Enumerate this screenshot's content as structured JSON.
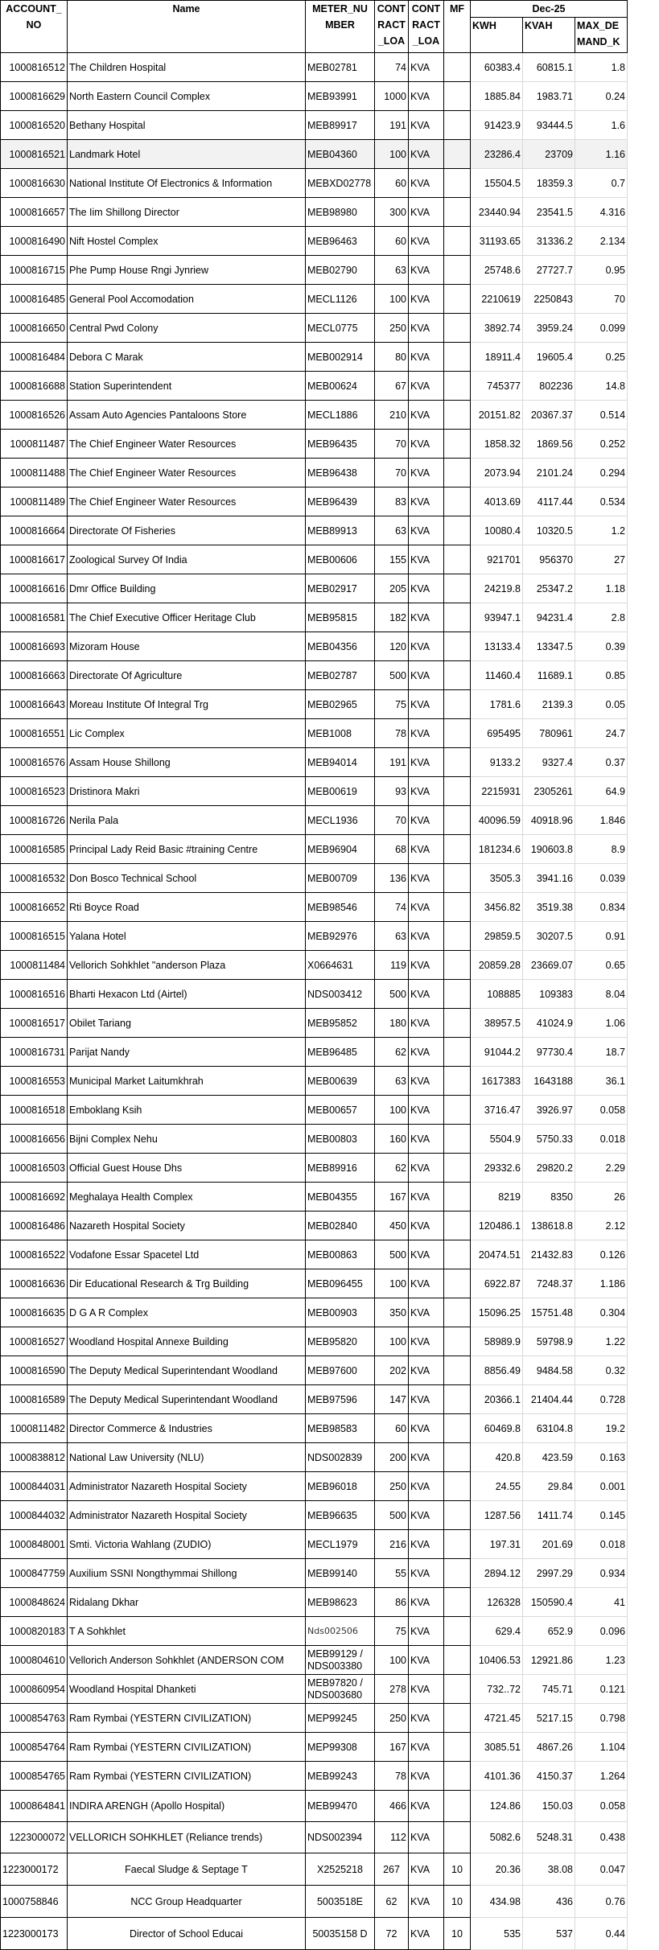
{
  "header": {
    "account_no": "ACCOUNT_ NO",
    "name": "Name",
    "meter_number": "METER_NU MBER",
    "contract_load": "CONT RACT _LOA",
    "contract_load_unit": "CONT RACT _LOA",
    "mf": "MF",
    "period": "Dec-25",
    "kwh": "KWH",
    "kvah": "KVAH",
    "max_demand": "MAX_DE MAND_K"
  },
  "rows": [
    [
      "1000816512",
      "The Children  Hospital",
      "MEB02781",
      "74",
      "KVA",
      "",
      "60383.4",
      "60815.1",
      "1.8"
    ],
    [
      "1000816629",
      "North Eastern Council Complex",
      "MEB93991",
      "1000",
      "KVA",
      "",
      "1885.84",
      "1983.71",
      "0.24"
    ],
    [
      "1000816520",
      "Bethany  Hospital",
      "MEB89917",
      "191",
      "KVA",
      "",
      "91423.9",
      "93444.5",
      "1.6"
    ],
    [
      "1000816521",
      "Landmark  Hotel",
      "MEB04360",
      "100",
      "KVA",
      "",
      "23286.4",
      "23709",
      "1.16"
    ],
    [
      "1000816630",
      "National Institute Of Electronics & Information",
      "MEBXD02778",
      "60",
      "KVA",
      "",
      "15504.5",
      "18359.3",
      "0.7"
    ],
    [
      "1000816657",
      "The Iim Shillong Director",
      "MEB98980",
      "300",
      "KVA",
      "",
      "23440.94",
      "23541.5",
      "4.316"
    ],
    [
      "1000816490",
      "Nift Hostel Complex",
      "MEB96463",
      "60",
      "KVA",
      "",
      "31193.65",
      "31336.2",
      "2.134"
    ],
    [
      "1000816715",
      "Phe Pump House Rngi Jynriew",
      "MEB02790",
      "63",
      "KVA",
      "",
      "25748.6",
      "27727.7",
      "0.95"
    ],
    [
      "1000816485",
      "General Pool Accomodation",
      "MECL1126",
      "100",
      "KVA",
      "",
      "2210619",
      "2250843",
      "70"
    ],
    [
      "1000816650",
      "Central Pwd Colony",
      "MECL0775",
      "250",
      "KVA",
      "",
      "3892.74",
      "3959.24",
      "0.099"
    ],
    [
      "1000816484",
      "Debora C Marak",
      "MEB002914",
      "80",
      "KVA",
      "",
      "18911.4",
      "19605.4",
      "0.25"
    ],
    [
      "1000816688",
      "Station  Superintendent",
      "MEB00624",
      "67",
      "KVA",
      "",
      "745377",
      "802236",
      "14.8"
    ],
    [
      "1000816526",
      "Assam Auto Agencies Pantaloons Store",
      "MECL1886",
      "210",
      "KVA",
      "",
      "20151.82",
      "20367.37",
      "0.514"
    ],
    [
      "1000811487",
      "The Chief Engineer  Water Resources",
      "MEB96435",
      "70",
      "KVA",
      "",
      "1858.32",
      "1869.56",
      "0.252"
    ],
    [
      "1000811488",
      "The Chief Engineer  Water Resources",
      "MEB96438",
      "70",
      "KVA",
      "",
      "2073.94",
      "2101.24",
      "0.294"
    ],
    [
      "1000811489",
      "The Chief Engineer  Water Resources",
      "MEB96439",
      "83",
      "KVA",
      "",
      "4013.69",
      "4117.44",
      "0.534"
    ],
    [
      "1000816664",
      "Directorate Of Fisheries",
      "MEB89913",
      "63",
      "KVA",
      "",
      "10080.4",
      "10320.5",
      "1.2"
    ],
    [
      "1000816617",
      "Zoological Survey Of India",
      "MEB00606",
      "155",
      "KVA",
      "",
      "921701",
      "956370",
      "27"
    ],
    [
      "1000816616",
      "Dmr Office Building",
      "MEB02917",
      "205",
      "KVA",
      "",
      "24219.8",
      "25347.2",
      "1.18"
    ],
    [
      "1000816581",
      "The Chief Executive Officer  Heritage Club",
      "MEB95815",
      "182",
      "KVA",
      "",
      "93947.1",
      "94231.4",
      "2.8"
    ],
    [
      "1000816693",
      "Mizoram  House",
      "MEB04356",
      "120",
      "KVA",
      "",
      "13133.4",
      "13347.5",
      "0.39"
    ],
    [
      "1000816663",
      "Directorate Of Agriculture",
      "MEB02787",
      "500",
      "KVA",
      "",
      "11460.4",
      "11689.1",
      "0.85"
    ],
    [
      "1000816643",
      "Moreau Institute Of Integral Trg",
      "MEB02965",
      "75",
      "KVA",
      "",
      "1781.6",
      "2139.3",
      "0.05"
    ],
    [
      "1000816551",
      "Lic  Complex",
      "MEB1008",
      "78",
      "KVA",
      "",
      "695495",
      "780961",
      "24.7"
    ],
    [
      "1000816576",
      "Assam House Shillong",
      "MEB94014",
      "191",
      "KVA",
      "",
      "9133.2",
      "9327.4",
      "0.37"
    ],
    [
      "1000816523",
      "Dristinora  Makri",
      "MEB00619",
      "93",
      "KVA",
      "",
      "2215931",
      "2305261",
      "64.9"
    ],
    [
      "1000816726",
      "Nerila  Pala",
      "MECL1936",
      "70",
      "KVA",
      "",
      "40096.59",
      "40918.96",
      "1.846"
    ],
    [
      "1000816585",
      "Principal  Lady Reid Basic #training Centre",
      "MEB96904",
      "68",
      "KVA",
      "",
      "181234.6",
      "190603.8",
      "8.9"
    ],
    [
      "1000816532",
      "Don Bosco Technical School",
      "MEB00709",
      "136",
      "KVA",
      "",
      "3505.3",
      "3941.16",
      "0.039"
    ],
    [
      "1000816652",
      "Rti Boyce Road",
      "MEB98546",
      "74",
      "KVA",
      "",
      "3456.82",
      "3519.38",
      "0.834"
    ],
    [
      "1000816515",
      "Yalana  Hotel",
      "MEB92976",
      "63",
      "KVA",
      "",
      "29859.5",
      "30207.5",
      "0.91"
    ],
    [
      "1000811484",
      "Vellorich  Sohkhlet \"anderson Plaza",
      "X0664631",
      "119",
      "KVA",
      "",
      "20859.28",
      "23669.07",
      "0.65"
    ],
    [
      "1000816516",
      "Bharti Hexacon Ltd (Airtel)",
      "NDS003412",
      "500",
      "KVA",
      "",
      "108885",
      "109383",
      "8.04"
    ],
    [
      "1000816517",
      "Obilet  Tariang",
      "MEB95852",
      "180",
      "KVA",
      "",
      "38957.5",
      "41024.9",
      "1.06"
    ],
    [
      "1000816731",
      "Parijat  Nandy",
      "MEB96485",
      "62",
      "KVA",
      "",
      "91044.2",
      "97730.4",
      "18.7"
    ],
    [
      "1000816553",
      "Municipal Market Laitumkhrah",
      "MEB00639",
      "63",
      "KVA",
      "",
      "1617383",
      "1643188",
      "36.1"
    ],
    [
      "1000816518",
      "Emboklang  Ksih",
      "MEB00657",
      "100",
      "KVA",
      "",
      "3716.47",
      "3926.97",
      "0.058"
    ],
    [
      "1000816656",
      "Bijni Complex Nehu",
      "MEB00803",
      "160",
      "KVA",
      "",
      "5504.9",
      "5750.33",
      "0.018"
    ],
    [
      "1000816503",
      "Official Guest House Dhs",
      "MEB89916",
      "62",
      "KVA",
      "",
      "29332.6",
      "29820.2",
      "2.29"
    ],
    [
      "1000816692",
      "Meghalaya Health Complex",
      "MEB04355",
      "167",
      "KVA",
      "",
      "8219",
      "8350",
      "26"
    ],
    [
      "1000816486",
      "Nazareth  Hospital Society",
      "MEB02840",
      "450",
      "KVA",
      "",
      "120486.1",
      "138618.8",
      "2.12"
    ],
    [
      "1000816522",
      "Vodafone Essar Spacetel Ltd",
      "MEB00863",
      "500",
      "KVA",
      "",
      "20474.51",
      "21432.83",
      "0.126"
    ],
    [
      "1000816636",
      "Dir Educational Research & Trg Building",
      "MEB096455",
      "100",
      "KVA",
      "",
      "6922.87",
      "7248.37",
      "1.186"
    ],
    [
      "1000816635",
      "D G A R  Complex",
      "MEB00903",
      "350",
      "KVA",
      "",
      "15096.25",
      "15751.48",
      "0.304"
    ],
    [
      "1000816527",
      "Woodland Hospital Annexe Building",
      "MEB95820",
      "100",
      "KVA",
      "",
      "58989.9",
      "59798.9",
      "1.22"
    ],
    [
      "1000816590",
      "The Deputy Medical Superintendant  Woodland",
      "MEB97600",
      "202",
      "KVA",
      "",
      "8856.49",
      "9484.58",
      "0.32"
    ],
    [
      "1000816589",
      "The Deputy Medical Superintendant  Woodland",
      "MEB97596",
      "147",
      "KVA",
      "",
      "20366.1",
      "21404.44",
      "0.728"
    ],
    [
      "1000811482",
      "Director Commerce &  Industries",
      "MEB98583",
      "60",
      "KVA",
      "",
      "60469.8",
      "63104.8",
      "19.2"
    ],
    [
      "1000838812",
      "National Law University (NLU)",
      "NDS002839",
      "200",
      "KVA",
      "",
      "420.8",
      "423.59",
      "0.163"
    ],
    [
      "1000844031",
      "Administrator Nazareth Hospital Society",
      "MEB96018",
      "250",
      "KVA",
      "",
      "24.55",
      "29.84",
      "0.001"
    ],
    [
      "1000844032",
      "Administrator Nazareth Hospital Society",
      "MEB96635",
      "500",
      "KVA",
      "",
      "1287.56",
      "1411.74",
      "0.145"
    ],
    [
      "1000848001",
      "Smti. Victoria Wahlang (ZUDIO)",
      "MECL1979",
      "216",
      "KVA",
      "",
      "197.31",
      "201.69",
      "0.018"
    ],
    [
      "1000847759",
      "Auxilium SSNI Nongthymmai Shillong",
      "MEB99140",
      "55",
      "KVA",
      "",
      "2894.12",
      "2997.29",
      "0.934"
    ],
    [
      "1000848624",
      "Ridalang Dkhar",
      "MEB98623",
      "86",
      "KVA",
      "",
      "126328",
      "150590.4",
      "41"
    ],
    [
      "1000820183",
      "T A Sohkhlet",
      "Nds002506",
      "75",
      "KVA",
      "",
      "629.4",
      "652.9",
      "0.096"
    ],
    [
      "1000804610",
      "Vellorich Anderson Sohkhlet (ANDERSON COM",
      "MEB99129 / NDS003380",
      "100",
      "KVA",
      "",
      "10406.53",
      "12921.86",
      "1.23"
    ],
    [
      "1000860954",
      "Woodland Hospital Dhanketi",
      "MEB97820 / NDS003680",
      "278",
      "KVA",
      "",
      "732..72",
      "745.71",
      "0.121"
    ],
    [
      "1000854763",
      "Ram Rymbai (YESTERN CIVILIZATION)",
      "MEP99245",
      "250",
      "KVA",
      "",
      "4721.45",
      "5217.15",
      "0.798"
    ],
    [
      "1000854764",
      "Ram Rymbai (YESTERN CIVILIZATION)",
      "MEP99308",
      "167",
      "KVA",
      "",
      "3085.51",
      "4867.26",
      "1.104"
    ],
    [
      "1000854765",
      "Ram Rymbai (YESTERN CIVILIZATION)",
      "MEB99243",
      "78",
      "KVA",
      "",
      "4101.36",
      "4150.37",
      "1.264"
    ],
    [
      "1000864841",
      "INDIRA ARENGH (Apollo Hospital)",
      "MEB99470",
      "466",
      "KVA",
      "",
      "124.86",
      "150.03",
      "0.058"
    ],
    [
      "1223000072",
      "VELLORICH SOHKHLET (Reliance trends)",
      "NDS002394",
      "112",
      "KVA",
      "",
      "5082.6",
      "5248.31",
      "0.438"
    ],
    [
      "1223000172",
      "Faecal Sludge & Septage T",
      "X2525218",
      "267",
      "KVA",
      "10",
      "20.36",
      "38.08",
      "0.047"
    ],
    [
      "1000758846",
      "NCC Group Headquarter",
      "5003518E",
      "62",
      "KVA",
      "10",
      "434.98",
      "436",
      "0.76"
    ],
    [
      "1223000173",
      "Director of School Educai",
      "50035158 D",
      "72",
      "KVA",
      "10",
      "535",
      "537",
      "0.44"
    ]
  ],
  "highlight_color": "#f2f2f2"
}
